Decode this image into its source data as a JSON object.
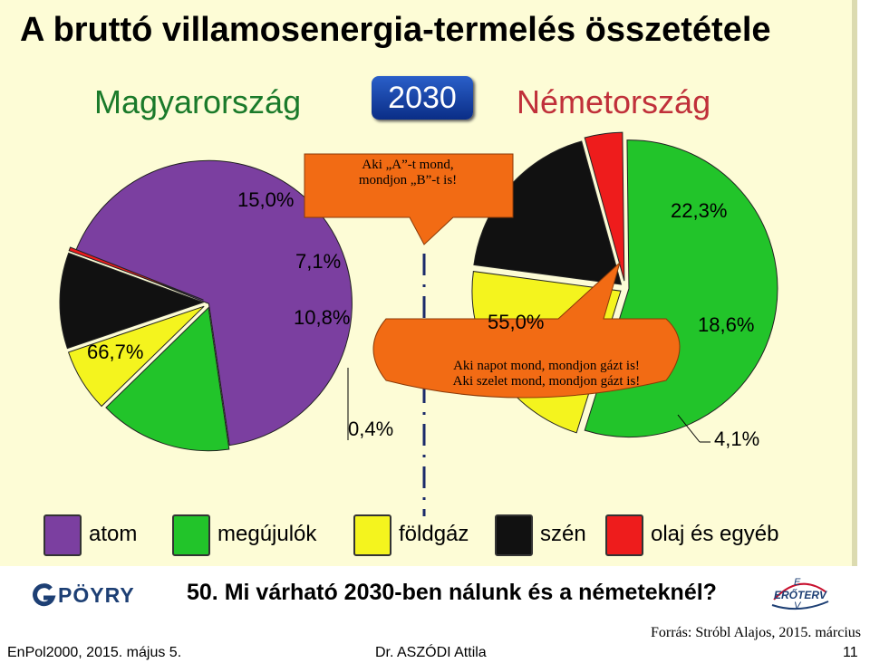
{
  "title": "A bruttó villamosenergia-termelés összetétele",
  "country_left": "Magyarország",
  "year": "2030",
  "country_right": "Németország",
  "callouts": {
    "top_line1": "Aki „A”-t mond,",
    "top_line2": "mondjon „B”-t is!",
    "bottom_line1": "Aki napot mond, mondjon gázt is!",
    "bottom_line2": "Aki szelet mond, mondjon gázt is!"
  },
  "colors": {
    "atom": "#7b3fa0",
    "megujulok": "#22c42a",
    "foldgaz": "#f4f41e",
    "szen": "#111111",
    "olaj": "#ee1c1c",
    "callout": "#f26b14"
  },
  "chart_data": [
    {
      "type": "pie",
      "name": "Magyarország",
      "slices": [
        {
          "label": "atom",
          "value": 66.7,
          "display": "66,7%"
        },
        {
          "label": "megújulók",
          "value": 15.0,
          "display": "15,0%"
        },
        {
          "label": "földgáz",
          "value": 7.1,
          "display": "7,1%"
        },
        {
          "label": "szén",
          "value": 10.8,
          "display": "10,8%"
        },
        {
          "label": "olaj és egyéb",
          "value": 0.4,
          "display": "0,4%"
        }
      ]
    },
    {
      "type": "pie",
      "name": "Németország",
      "slices": [
        {
          "label": "megújulók",
          "value": 55.0,
          "display": "55,0%"
        },
        {
          "label": "földgáz",
          "value": 22.3,
          "display": "22,3%"
        },
        {
          "label": "szén",
          "value": 18.6,
          "display": "18,6%"
        },
        {
          "label": "olaj és egyéb",
          "value": 4.1,
          "display": "4,1%"
        }
      ]
    }
  ],
  "legend": [
    {
      "label": "atom",
      "color": "#7b3fa0"
    },
    {
      "label": "megújulók",
      "color": "#22c42a"
    },
    {
      "label": "földgáz",
      "color": "#f4f41e"
    },
    {
      "label": "szén",
      "color": "#111111"
    },
    {
      "label": "olaj és egyéb",
      "color": "#ee1c1c"
    }
  ],
  "question": "50. Mi várható 2030-ben nálunk és a németeknél?",
  "logos": {
    "left": "PÖYRY",
    "right_line1": "E",
    "right_line2": "ERŐTERV",
    "right_line3": "V"
  },
  "source": "Forrás: Stróbl Alajos, 2015. március",
  "footer": {
    "left": "EnPol2000, 2015. május 5.",
    "center": "Dr. ASZÓDI Attila",
    "page": "11"
  }
}
